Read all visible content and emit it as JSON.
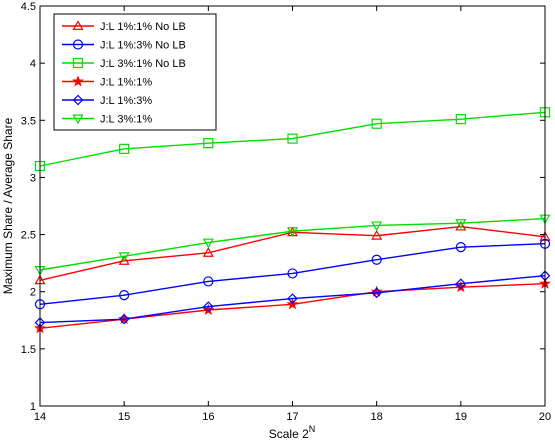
{
  "chart_data": {
    "type": "line",
    "title": "",
    "xlabel_base": "Scale 2",
    "xlabel_sup": "N",
    "ylabel": "Maximum Share / Average Share",
    "xlim": [
      14,
      20
    ],
    "ylim": [
      1,
      4.5
    ],
    "xticks": [
      "14",
      "15",
      "16",
      "17",
      "18",
      "19",
      "20"
    ],
    "yticks": [
      "1",
      "1.5",
      "2",
      "2.5",
      "3",
      "3.5",
      "4",
      "4.5"
    ],
    "grid": false,
    "legend_position": "top-left",
    "x": [
      14,
      15,
      16,
      17,
      18,
      19,
      20
    ],
    "series": [
      {
        "name": "J:L 1%:1% No LB",
        "color": "#ff0000",
        "marker": "triangle-up",
        "values": [
          2.1,
          2.27,
          2.34,
          2.52,
          2.49,
          2.57,
          2.48
        ]
      },
      {
        "name": "J:L 1%:3% No LB",
        "color": "#0000ff",
        "marker": "circle",
        "values": [
          1.89,
          1.97,
          2.09,
          2.16,
          2.28,
          2.39,
          2.42
        ]
      },
      {
        "name": "J:L 3%:1% No LB",
        "color": "#00dd00",
        "marker": "square",
        "values": [
          3.1,
          3.25,
          3.3,
          3.34,
          3.47,
          3.51,
          3.57
        ]
      },
      {
        "name": "J:L 1%:1%",
        "color": "#ff0000",
        "marker": "star",
        "values": [
          1.68,
          1.76,
          1.84,
          1.89,
          2.0,
          2.04,
          2.07
        ]
      },
      {
        "name": "J:L 1%:3%",
        "color": "#0000ff",
        "marker": "diamond",
        "values": [
          1.73,
          1.76,
          1.87,
          1.94,
          1.99,
          2.07,
          2.14
        ]
      },
      {
        "name": "J:L 3%:1%",
        "color": "#00dd00",
        "marker": "triangle-down",
        "values": [
          2.19,
          2.31,
          2.43,
          2.53,
          2.58,
          2.6,
          2.64
        ]
      }
    ]
  }
}
